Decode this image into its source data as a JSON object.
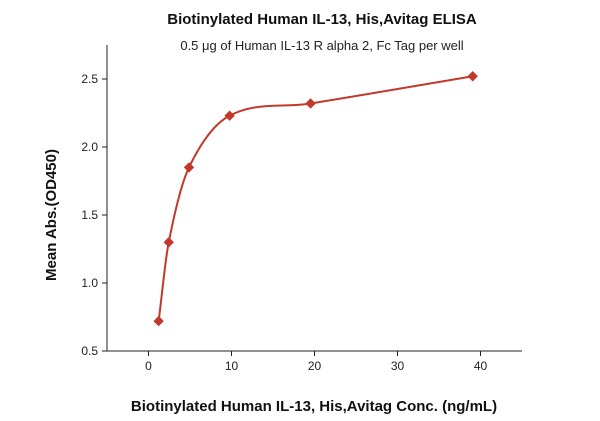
{
  "chart_data": {
    "type": "scatter",
    "title": "Biotinylated Human IL-13, His,Avitag ELISA",
    "subtitle": "0.5 μg of Human IL-13 R alpha 2, Fc Tag per well",
    "xlabel": "Biotinylated Human IL-13, His,Avitag Conc. (ng/mL)",
    "ylabel": "Mean Abs.(OD450)",
    "xlim": [
      -5,
      45
    ],
    "ylim": [
      0.5,
      2.75
    ],
    "xticks": [
      0,
      10,
      20,
      30,
      40
    ],
    "yticks": [
      0.5,
      1.0,
      1.5,
      2.0,
      2.5
    ],
    "xtick_labels": [
      "0",
      "10",
      "20",
      "30",
      "40"
    ],
    "ytick_labels": [
      "0.5",
      "1.0",
      "1.5",
      "2.0",
      "2.5"
    ],
    "grid": false,
    "series": [
      {
        "x": [
          1.22,
          2.44,
          4.88,
          9.77,
          19.53,
          39.06
        ],
        "y": [
          0.72,
          1.3,
          1.85,
          2.23,
          2.32,
          2.52
        ],
        "marker": "diamond",
        "color": "#c0392b",
        "fit_curve": true,
        "fit_color": "#c0392b"
      }
    ]
  }
}
